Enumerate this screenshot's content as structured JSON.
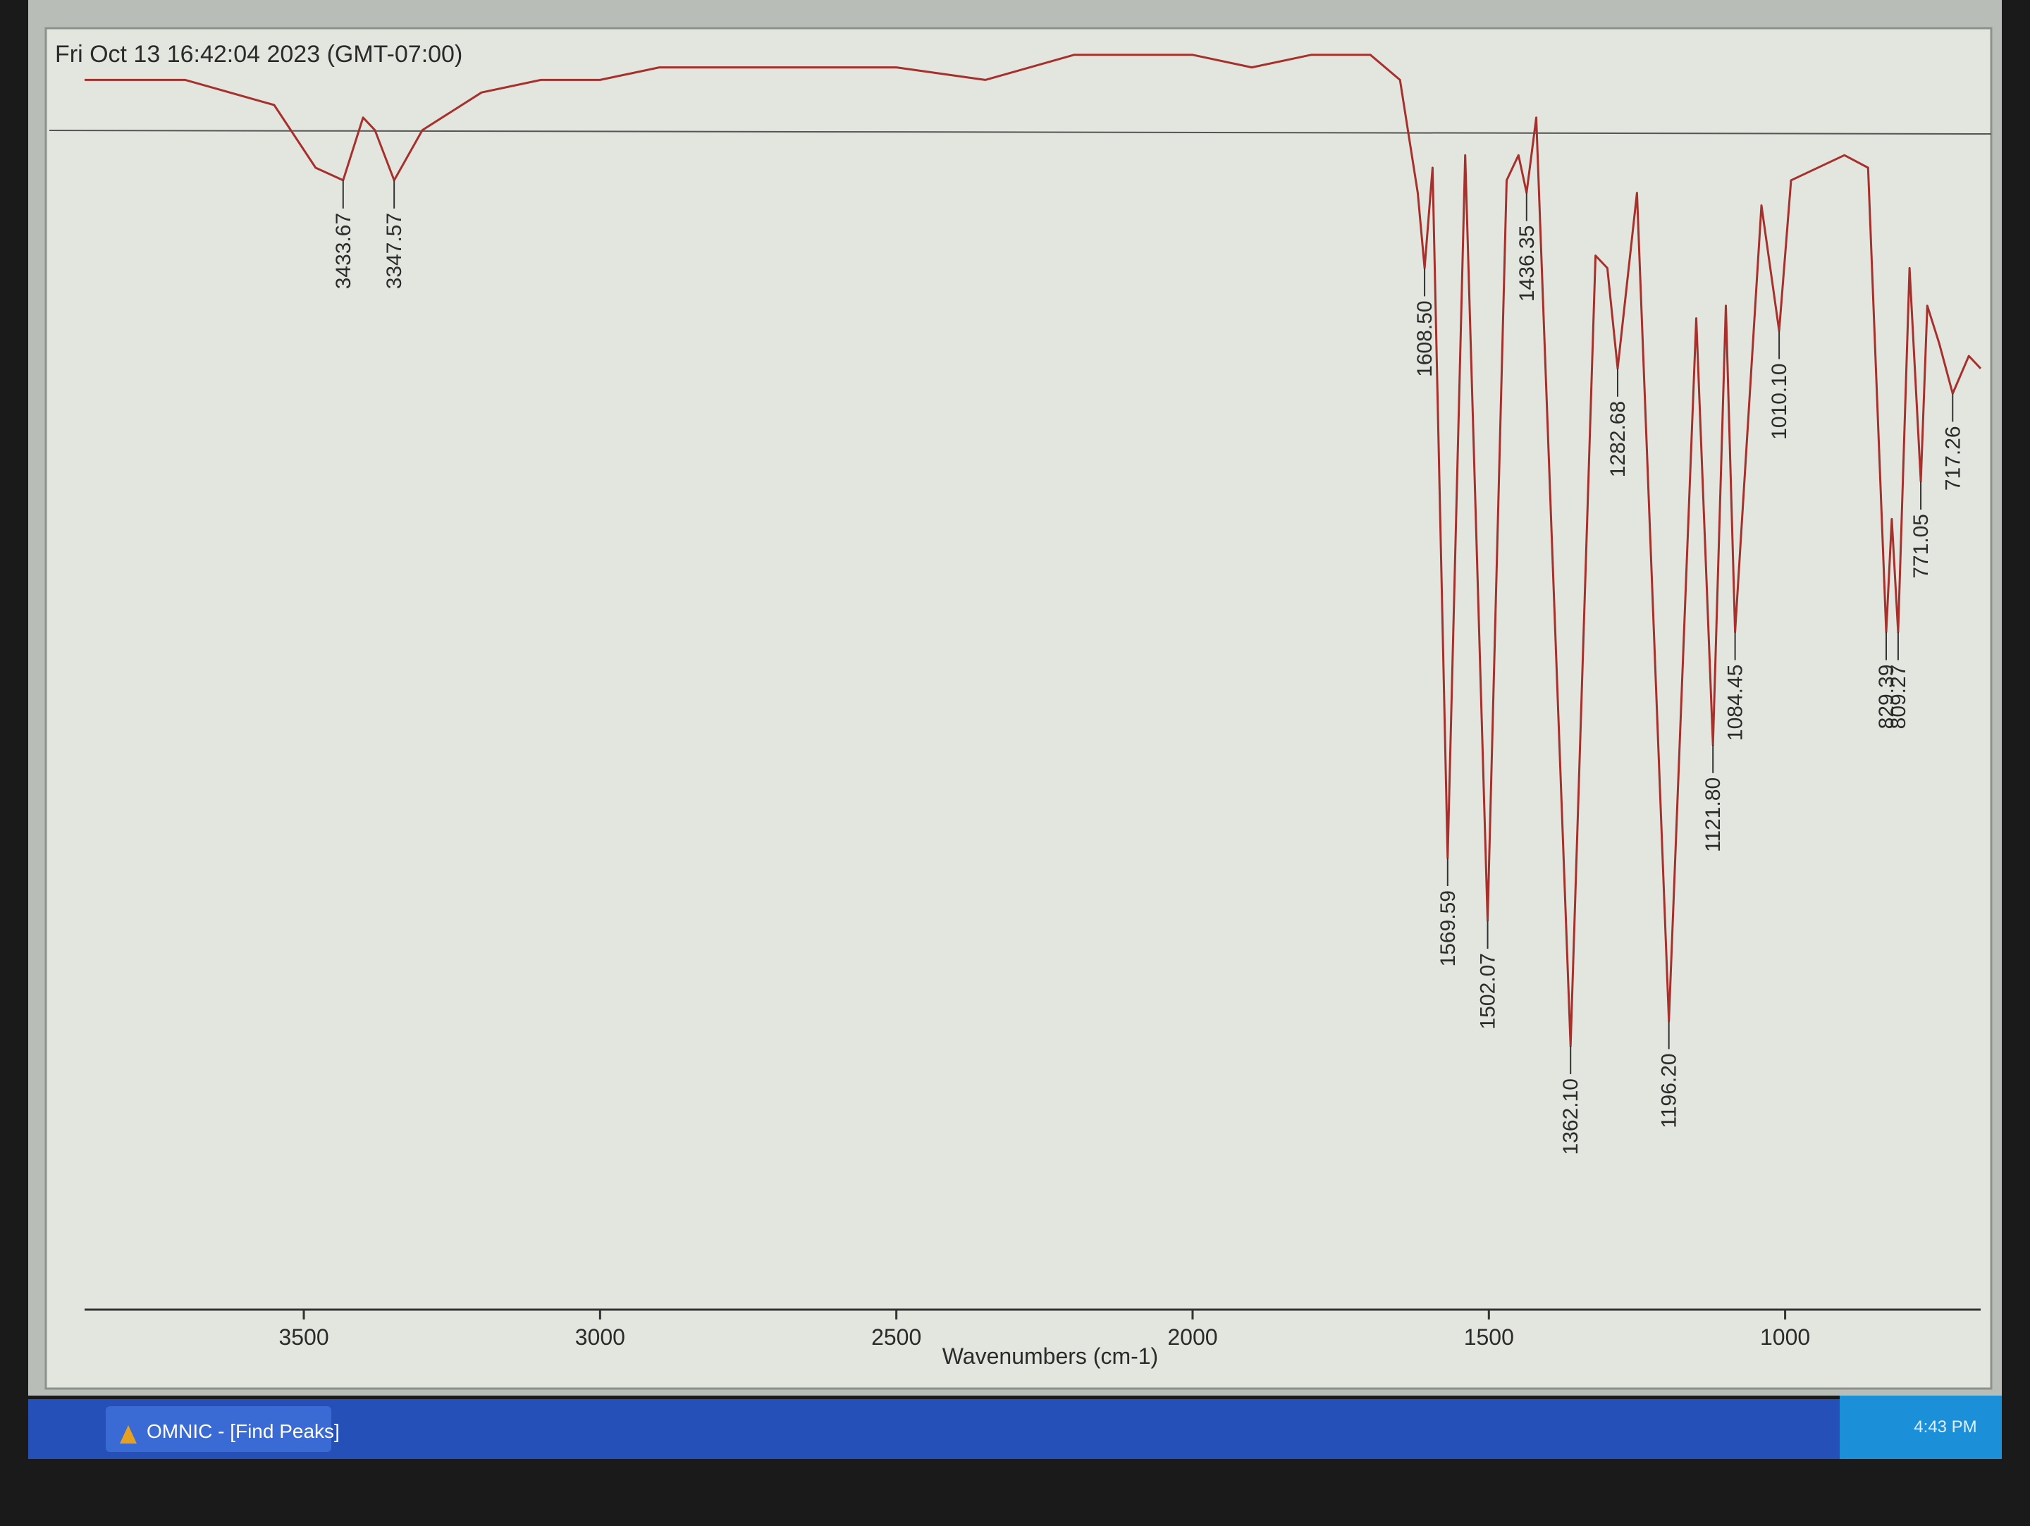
{
  "chart_data": {
    "type": "line",
    "title": "Fri Oct 13 16:42:04 2023 (GMT-07:00)",
    "xlabel": "Wavenumbers (cm-1)",
    "xlim": [
      3870,
      670
    ],
    "xticks": [
      3500,
      3000,
      2500,
      2000,
      1500,
      1000
    ],
    "ylim": [
      0,
      100
    ],
    "color": "#a8302c",
    "x": [
      3870,
      3700,
      3550,
      3480,
      3433.67,
      3400,
      3380,
      3347.57,
      3300,
      3200,
      3100,
      3000,
      2900,
      2700,
      2500,
      2350,
      2200,
      2100,
      2000,
      1900,
      1800,
      1700,
      1650,
      1620,
      1608.5,
      1595,
      1569.59,
      1540,
      1502.07,
      1470,
      1450,
      1436.35,
      1420,
      1362.1,
      1320,
      1300,
      1282.68,
      1250,
      1196.2,
      1150,
      1121.8,
      1100,
      1084.45,
      1040,
      1010.1,
      990,
      900,
      860,
      829.39,
      820,
      809.27,
      790,
      771.05,
      760,
      740,
      717.26,
      690,
      670
    ],
    "values": [
      97,
      97,
      95,
      90,
      89,
      94,
      93,
      89,
      93,
      96,
      97,
      97,
      98,
      98,
      98,
      97,
      99,
      99,
      99,
      98,
      99,
      99,
      97,
      88,
      82,
      90,
      35,
      91,
      30,
      89,
      91,
      88,
      94,
      20,
      83,
      82,
      74,
      88,
      22,
      78,
      44,
      79,
      53,
      87,
      77,
      89,
      91,
      90,
      53,
      62,
      53,
      82,
      65,
      79,
      76,
      72,
      75,
      74
    ],
    "peaks": {
      "x": [
        3433.67,
        3347.57,
        {
          "value": 1608.5,
          "label": "1608.50"
        },
        1569.59,
        1502.07,
        1436.35,
        {
          "value": 1362.1,
          "label": "1362.10"
        },
        1282.68,
        {
          "value": 1196.2,
          "label": "1196.20"
        },
        {
          "value": 1121.8,
          "label": "1121.80"
        },
        1084.45,
        {
          "value": 1010.1,
          "label": "1010.10"
        },
        829.39,
        809.27,
        771.05,
        717.26
      ],
      "values": [
        89,
        89,
        82,
        35,
        30,
        88,
        20,
        74,
        22,
        44,
        53,
        77,
        53,
        53,
        65,
        72
      ]
    }
  },
  "taskbar": {
    "button": "OMNIC - [Find Peaks]",
    "clock": "4:43 PM"
  }
}
